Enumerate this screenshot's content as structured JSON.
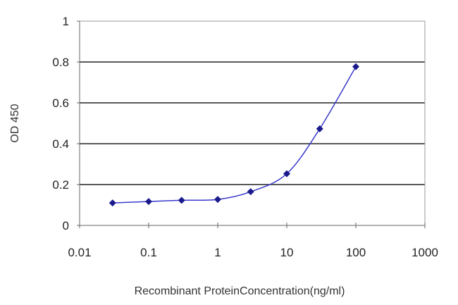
{
  "chart_data": {
    "type": "line",
    "title": "",
    "xlabel": "Recombinant ProteinConcentration(ng/ml)",
    "ylabel": "OD 450",
    "x_scale": "log",
    "xlim": [
      0.01,
      1000
    ],
    "ylim": [
      0,
      1
    ],
    "x_ticks": [
      "0.01",
      "0.1",
      "1",
      "10",
      "100",
      "1000"
    ],
    "y_ticks": [
      "0",
      "0.2",
      "0.4",
      "0.6",
      "0.8",
      "1"
    ],
    "grid": "horizontal",
    "legend": "none",
    "series": [
      {
        "color": "#1a1a8c",
        "marker": "diamond",
        "x": [
          0.03,
          0.1,
          0.3,
          1,
          3,
          10,
          30,
          100
        ],
        "y": [
          0.11,
          0.117,
          0.123,
          0.127,
          0.165,
          0.253,
          0.473,
          0.777
        ]
      }
    ]
  }
}
